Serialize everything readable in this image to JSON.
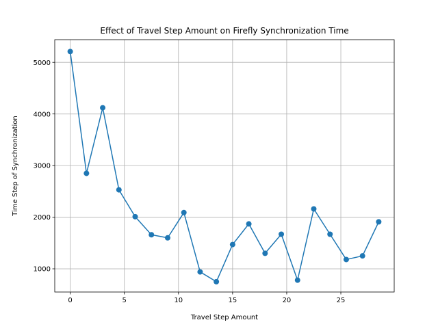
{
  "chart_data": {
    "type": "line",
    "title": "Effect of Travel Step Amount on Firefly Synchronization Time",
    "xlabel": "Travel Step Amount",
    "ylabel": "Time Step of Synchronization",
    "xlim": [
      -1.43,
      29.93
    ],
    "ylim": [
      550,
      5440
    ],
    "xticks": [
      0,
      5,
      10,
      15,
      20,
      25
    ],
    "yticks": [
      1000,
      2000,
      3000,
      4000,
      5000
    ],
    "xtick_labels": [
      "0",
      "5",
      "10",
      "15",
      "20",
      "25"
    ],
    "ytick_labels": [
      "1000",
      "2000",
      "3000",
      "4000",
      "5000"
    ],
    "grid": true,
    "marker": "circle",
    "line_color": "#1f77b4",
    "series": [
      {
        "x": [
          0,
          1.5,
          3,
          4.5,
          6,
          7.5,
          9,
          10.5,
          12,
          13.5,
          15,
          16.5,
          18,
          19.5,
          21,
          22.5,
          24,
          25.5,
          27,
          28.5
        ],
        "y": [
          5210,
          2850,
          4120,
          2530,
          2010,
          1660,
          1600,
          2090,
          940,
          750,
          1470,
          1870,
          1300,
          1670,
          780,
          2160,
          1670,
          1180,
          1250,
          1910
        ]
      }
    ]
  }
}
